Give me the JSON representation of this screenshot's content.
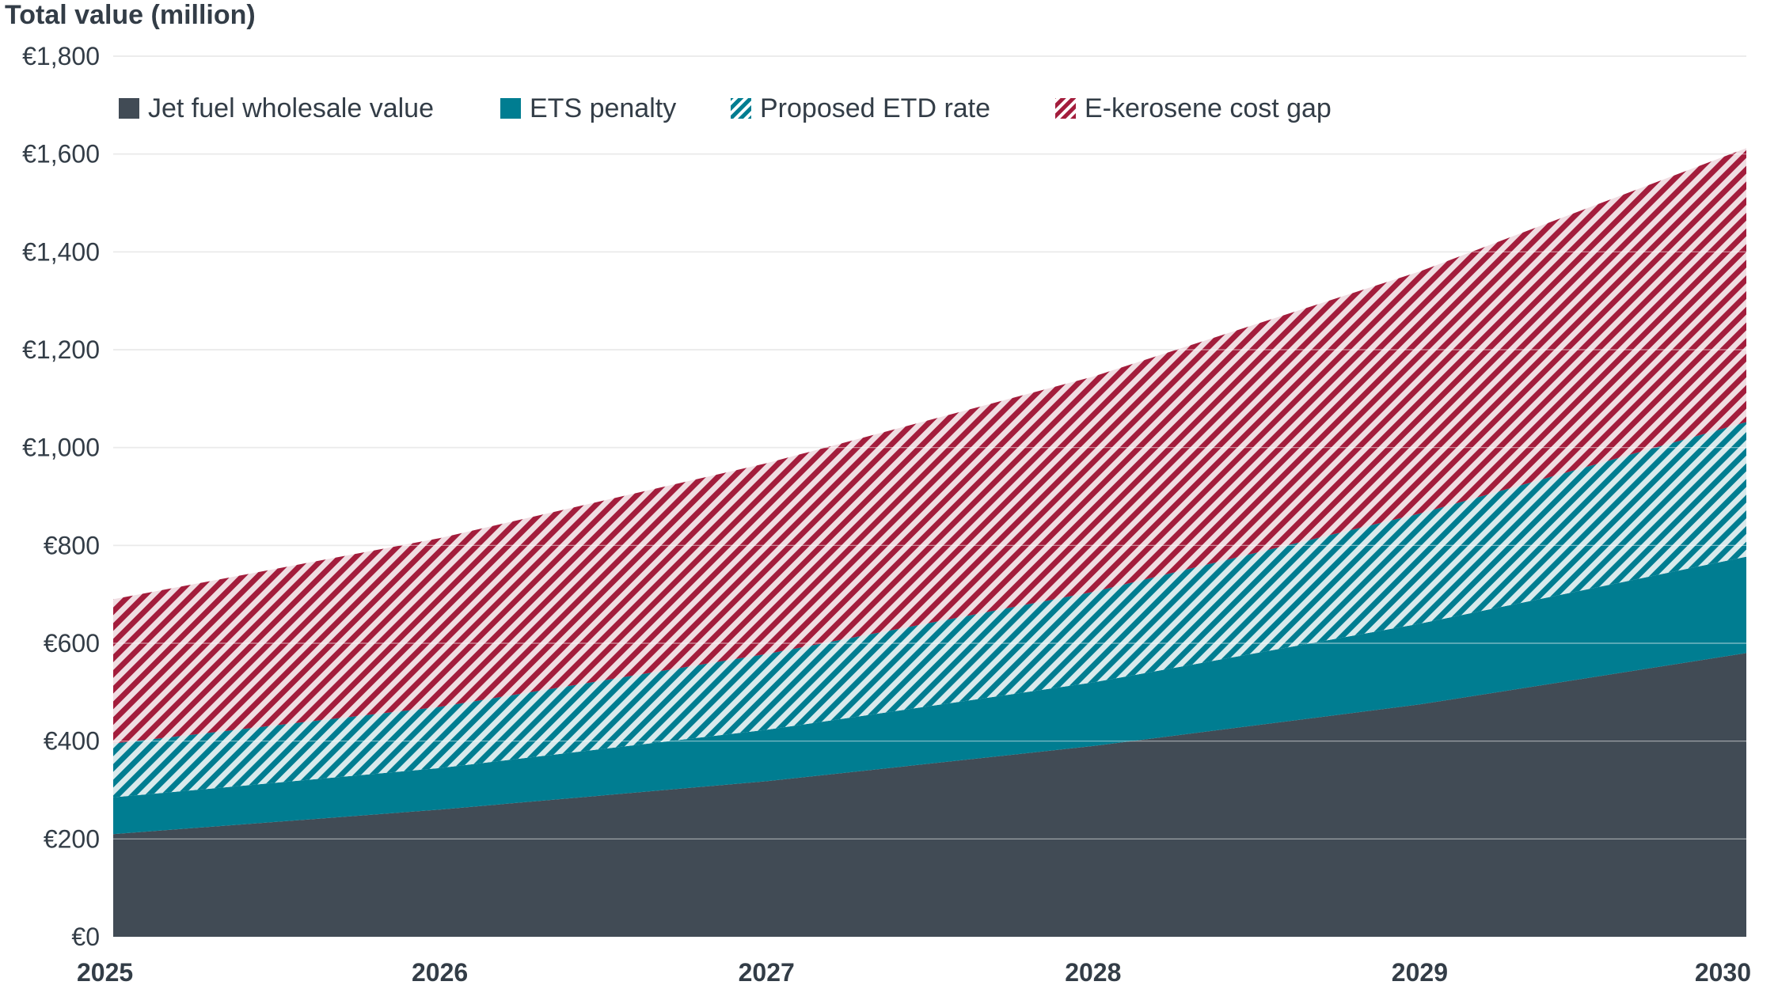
{
  "chart_data": {
    "type": "area",
    "stacked": true,
    "title": "",
    "ylabel": "Total value (million)",
    "xlabel": "",
    "x": [
      "2025",
      "2026",
      "2027",
      "2028",
      "2029",
      "2030"
    ],
    "ylim": [
      0,
      1800
    ],
    "yticks": [
      0,
      200,
      400,
      600,
      800,
      1000,
      1200,
      1400,
      1600,
      1800
    ],
    "ytick_labels": [
      "€0",
      "€200",
      "€400",
      "€600",
      "€800",
      "€1,000",
      "€1,200",
      "€1,400",
      "€1,600",
      "€1,800"
    ],
    "grid": true,
    "legend_position": "top",
    "series": [
      {
        "name": "Jet fuel wholesale value",
        "values": [
          210,
          260,
          318,
          390,
          475,
          580
        ],
        "color": "#414b55",
        "style": "solid"
      },
      {
        "name": "ETS penalty",
        "values": [
          75,
          85,
          105,
          130,
          165,
          197
        ],
        "color": "#007d91",
        "style": "solid"
      },
      {
        "name": "Proposed ETD rate",
        "values": [
          110,
          125,
          155,
          185,
          225,
          275
        ],
        "color": "#007d91",
        "style": "hatched"
      },
      {
        "name": "E-kerosene cost gap",
        "values": [
          295,
          345,
          390,
          440,
          495,
          560
        ],
        "color": "#a31d3c",
        "style": "hatched"
      }
    ]
  }
}
